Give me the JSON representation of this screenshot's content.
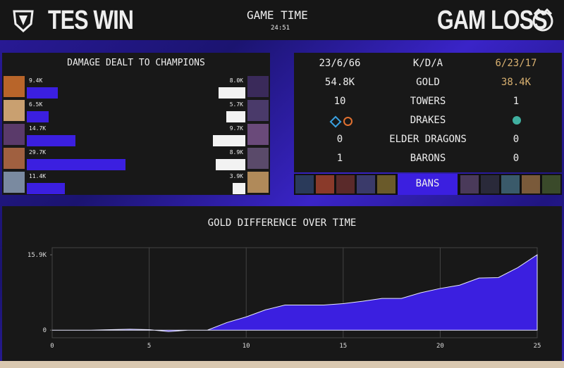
{
  "header": {
    "left_result": "TES WIN",
    "center_title": "GAME TIME",
    "game_time": "24:51",
    "right_result": "GAM LOSS"
  },
  "damage": {
    "title": "DAMAGE DEALT TO CHAMPIONS",
    "blue": {
      "values": [
        9400,
        6500,
        14700,
        29700,
        11400
      ],
      "value_labels": [
        "9.4K",
        "6.5K",
        "14.7K",
        "29.7K",
        "11.4K"
      ],
      "color": "#3b1fe0"
    },
    "red": {
      "values": [
        8000,
        5700,
        9700,
        8900,
        3900
      ],
      "value_labels": [
        "8.0K",
        "5.7K",
        "9.7K",
        "8.9K",
        "3.9K"
      ],
      "color": "#f2f2f2"
    }
  },
  "stats": {
    "rows": [
      [
        "23/6/66",
        "K/D/A",
        "6/23/17"
      ],
      [
        "54.8K",
        "GOLD",
        "38.4K"
      ],
      [
        10,
        "TOWERS",
        1
      ],
      [
        "DRAKES"
      ],
      [
        0,
        "ELDER DRAGONS",
        0
      ],
      [
        1,
        "BARONS",
        0
      ]
    ]
  },
  "bans": {
    "label": "BANS"
  },
  "chart_data": {
    "type": "area",
    "title": "GOLD DIFFERENCE OVER TIME",
    "x": [
      0,
      1,
      2,
      3,
      4,
      5,
      6,
      7,
      8,
      9,
      10,
      11,
      12,
      13,
      14,
      15,
      16,
      17,
      18,
      19,
      20,
      21,
      22,
      23,
      24,
      25
    ],
    "series": [
      {
        "color": "#3b1fe0",
        "values": [
          0,
          0,
          0,
          100,
          200,
          100,
          -300,
          0,
          0,
          1600,
          2800,
          4300,
          5300,
          5300,
          5300,
          5600,
          6100,
          6700,
          6700,
          7900,
          8800,
          9500,
          11000,
          11100,
          13200,
          15900
        ]
      }
    ],
    "xlim": [
      0,
      25
    ],
    "ylim": [
      -1600,
      17400
    ],
    "xticks": [
      0,
      5,
      10,
      15,
      20,
      25
    ],
    "yticks": [
      0,
      {
        "value": 15900,
        "label": "15.9K"
      }
    ],
    "grid": true
  }
}
